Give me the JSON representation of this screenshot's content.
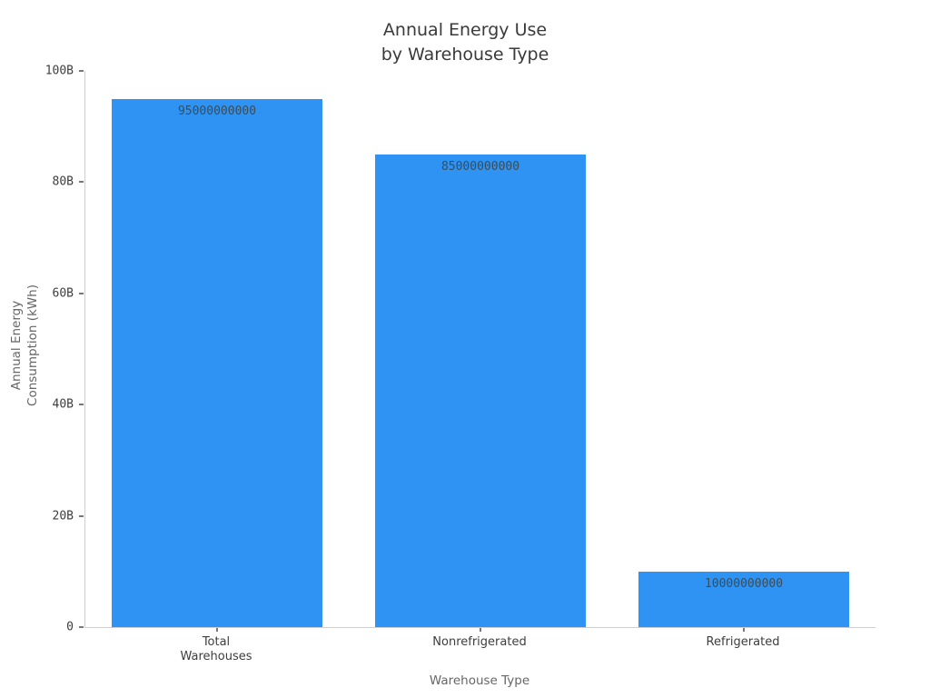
{
  "chart_data": {
    "type": "bar",
    "title": "Annual Energy Use\nby Warehouse Type",
    "title_lines": [
      "Annual Energy Use",
      "by Warehouse Type"
    ],
    "xlabel": "Warehouse Type",
    "ylabel": "Annual Energy\nConsumption (kWh)",
    "ylabel_lines": [
      "Annual Energy",
      "Consumption (kWh)"
    ],
    "categories": [
      "Total Warehouses",
      "Nonrefrigerated",
      "Refrigerated"
    ],
    "category_label_lines": [
      [
        "Total",
        "Warehouses"
      ],
      [
        "Nonrefrigerated"
      ],
      [
        "Refrigerated"
      ]
    ],
    "values": [
      95000000000,
      85000000000,
      10000000000
    ],
    "bar_value_labels": [
      "95000000000",
      "85000000000",
      "10000000000"
    ],
    "ylim": [
      0,
      100000000000
    ],
    "yticks": [
      {
        "value": 0,
        "label": "0"
      },
      {
        "value": 20000000000,
        "label": "20B"
      },
      {
        "value": 40000000000,
        "label": "40B"
      },
      {
        "value": 60000000000,
        "label": "60B"
      },
      {
        "value": 80000000000,
        "label": "80B"
      },
      {
        "value": 100000000000,
        "label": "100B"
      }
    ],
    "grid": false,
    "legend": null
  },
  "colors": {
    "bar": "#2e93f2",
    "bar_value_text": "#3b4d5a",
    "title_text": "#3a3a3a",
    "tick_text": "#3d3d3d",
    "axis_title_text": "#666666",
    "axis_line": "#cfcfcf",
    "tick_mark": "#777777",
    "background": "#ffffff"
  }
}
